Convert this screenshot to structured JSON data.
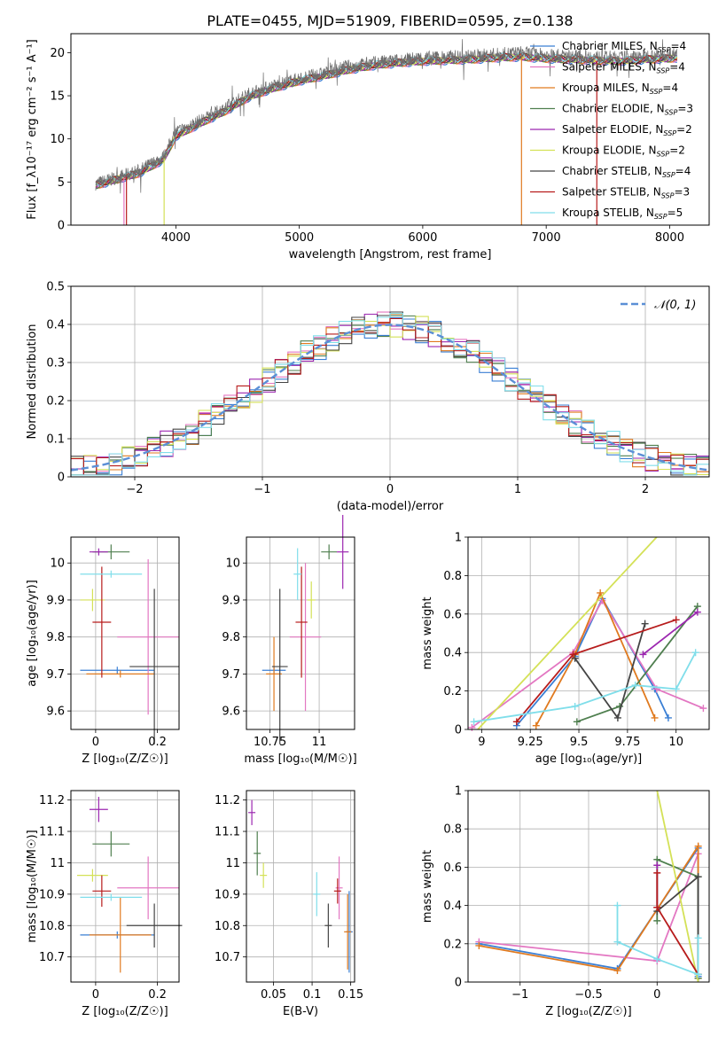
{
  "figure": {
    "title": "PLATE=0455, MJD=51909, FIBERID=0595, z=0.138",
    "models": [
      {
        "name": "Chabrier MILES",
        "nssp": "4",
        "color": "#3a7fd4"
      },
      {
        "name": "Salpeter MILES",
        "nssp": "4",
        "color": "#e377c2"
      },
      {
        "name": "Kroupa MILES",
        "nssp": "4",
        "color": "#e07a1f"
      },
      {
        "name": "Chabrier ELODIE",
        "nssp": "3",
        "color": "#4f7f4f"
      },
      {
        "name": "Salpeter ELODIE",
        "nssp": "2",
        "color": "#9c27b0"
      },
      {
        "name": "Kroupa ELODIE",
        "nssp": "2",
        "color": "#d4e157"
      },
      {
        "name": "Chabrier STELIB",
        "nssp": "4",
        "color": "#444444"
      },
      {
        "name": "Salpeter STELIB",
        "nssp": "3",
        "color": "#b71c1c"
      },
      {
        "name": "Kroupa STELIB",
        "nssp": "5",
        "color": "#80deea"
      }
    ]
  },
  "chart_data": [
    {
      "id": "spectrum",
      "type": "line",
      "xlabel": "wavelength [Angstrom, rest frame]",
      "ylabel": "Flux [f_λ10⁻¹⁷ erg cm⁻² s⁻¹ A⁻¹]",
      "xlim": [
        3150,
        8320
      ],
      "ylim": [
        0,
        22.2
      ],
      "xticks": [
        4000,
        5000,
        6000,
        7000,
        8000
      ],
      "yticks": [
        0,
        5,
        10,
        15,
        20
      ],
      "legend": "top-right",
      "x": [
        3350,
        3500,
        3700,
        3900,
        4000,
        4200,
        4400,
        4600,
        4800,
        5000,
        5200,
        5400,
        5600,
        5800,
        6000,
        6200,
        6400,
        6600,
        6800,
        7000,
        7200,
        7400,
        7600,
        7800,
        8000,
        8060
      ],
      "y": [
        4.8,
        5.4,
        6.3,
        7.9,
        10.8,
        12.1,
        13.6,
        15.3,
        16.2,
        17.0,
        17.6,
        18.4,
        18.8,
        19.1,
        19.4,
        19.5,
        19.6,
        19.8,
        20.0,
        19.7,
        19.6,
        19.5,
        19.4,
        19.6,
        19.8,
        20.0
      ],
      "y_fit": [
        4.6,
        5.2,
        6.0,
        7.6,
        10.3,
        11.8,
        13.2,
        14.9,
        15.9,
        16.7,
        17.3,
        18.0,
        18.5,
        18.8,
        19.0,
        19.1,
        19.2,
        19.4,
        19.5,
        19.3,
        19.2,
        19.1,
        19.0,
        19.2,
        19.3,
        19.4
      ]
    },
    {
      "id": "residuals",
      "type": "histogram",
      "xlabel": "(data-model)/error",
      "ylabel": "Normed distribution",
      "xlim": [
        -2.5,
        2.5
      ],
      "ylim": [
        0,
        0.5
      ],
      "xticks": [
        -2,
        -1,
        0,
        1,
        2
      ],
      "yticks": [
        0.0,
        0.1,
        0.2,
        0.3,
        0.4,
        0.5
      ],
      "grid": true,
      "legend": "top-right",
      "reference_curve": "𝒩(0, 1)",
      "bin_width": 0.1
    },
    {
      "id": "age_vs_Z",
      "type": "scatter",
      "xlabel": "Z [log₁₀(Z/Z☉)]",
      "ylabel": "age  [log₁₀(age/yr)]",
      "xlim": [
        -0.08,
        0.27
      ],
      "ylim": [
        9.55,
        10.07
      ],
      "xticks": [
        0.0,
        0.2
      ],
      "yticks": [
        9.6,
        9.7,
        9.8,
        9.9,
        10.0
      ],
      "grid": true,
      "points": [
        {
          "model": 0,
          "x": 0.07,
          "y": 9.71,
          "xerr": 0.12,
          "yerr": 0.0
        },
        {
          "model": 1,
          "x": 0.17,
          "y": 9.8,
          "xerr": 0.1,
          "yerr": 0.21
        },
        {
          "model": 2,
          "x": 0.08,
          "y": 9.7,
          "xerr": 0.11,
          "yerr": 0.0
        },
        {
          "model": 3,
          "x": 0.05,
          "y": 10.03,
          "xerr": 0.06,
          "yerr": 0.02
        },
        {
          "model": 4,
          "x": 0.01,
          "y": 10.03,
          "xerr": 0.03,
          "yerr": 0.0
        },
        {
          "model": 5,
          "x": -0.01,
          "y": 9.9,
          "xerr": 0.04,
          "yerr": 0.03
        },
        {
          "model": 6,
          "x": 0.19,
          "y": 9.72,
          "xerr": 0.08,
          "yerr": 0.21
        },
        {
          "model": 7,
          "x": 0.02,
          "y": 9.84,
          "xerr": 0.03,
          "yerr": 0.15
        },
        {
          "model": 8,
          "x": 0.05,
          "y": 9.97,
          "xerr": 0.1,
          "yerr": 0.0
        }
      ]
    },
    {
      "id": "age_vs_mass",
      "type": "scatter",
      "xlabel": "mass [log₁₀(M/M☉)]",
      "ylabel": "",
      "xlim": [
        10.63,
        11.18
      ],
      "ylim": [
        9.55,
        10.07
      ],
      "xticks": [
        10.75,
        11.0
      ],
      "yticks": [
        9.6,
        9.7,
        9.8,
        9.9,
        10.0
      ],
      "grid": true,
      "points": [
        {
          "model": 0,
          "x": 10.77,
          "y": 9.71,
          "xerr": 0.06,
          "yerr": 0.0
        },
        {
          "model": 1,
          "x": 10.93,
          "y": 9.8,
          "xerr": 0.08,
          "yerr": 0.2
        },
        {
          "model": 2,
          "x": 10.77,
          "y": 9.7,
          "xerr": 0.04,
          "yerr": 0.1
        },
        {
          "model": 3,
          "x": 11.05,
          "y": 10.03,
          "xerr": 0.04,
          "yerr": 0.02
        },
        {
          "model": 4,
          "x": 11.12,
          "y": 10.03,
          "xerr": 0.03,
          "yerr": 0.1
        },
        {
          "model": 5,
          "x": 10.96,
          "y": 9.9,
          "xerr": 0.02,
          "yerr": 0.05
        },
        {
          "model": 6,
          "x": 10.8,
          "y": 9.72,
          "xerr": 0.04,
          "yerr": 0.21
        },
        {
          "model": 7,
          "x": 10.91,
          "y": 9.84,
          "xerr": 0.03,
          "yerr": 0.15
        },
        {
          "model": 8,
          "x": 10.89,
          "y": 9.97,
          "xerr": 0.02,
          "yerr": 0.07
        }
      ]
    },
    {
      "id": "weight_vs_age",
      "type": "line",
      "xlabel": "age  [log₁₀(age/yr)]",
      "ylabel": "mass weight",
      "xlim": [
        8.93,
        10.17
      ],
      "ylim": [
        0,
        1.0
      ],
      "xticks": [
        9.0,
        9.25,
        9.5,
        9.75,
        10.0
      ],
      "yticks": [
        0.0,
        0.2,
        0.4,
        0.6,
        0.8,
        1.0
      ],
      "grid": true,
      "series": [
        {
          "model": 0,
          "x": [
            9.18,
            9.48,
            9.62,
            9.89,
            9.96
          ],
          "y": [
            0.02,
            0.38,
            0.68,
            0.21,
            0.06
          ]
        },
        {
          "model": 1,
          "x": [
            8.95,
            9.47,
            9.62,
            9.9,
            10.14
          ],
          "y": [
            0.01,
            0.4,
            0.67,
            0.21,
            0.11
          ]
        },
        {
          "model": 2,
          "x": [
            9.28,
            9.48,
            9.61,
            9.89
          ],
          "y": [
            0.02,
            0.39,
            0.71,
            0.06
          ]
        },
        {
          "model": 3,
          "x": [
            9.49,
            9.71,
            10.11
          ],
          "y": [
            0.04,
            0.12,
            0.64
          ]
        },
        {
          "model": 4,
          "x": [
            9.83,
            10.11
          ],
          "y": [
            0.39,
            0.61
          ]
        },
        {
          "model": 5,
          "x": [
            8.98,
            9.9
          ],
          "y": [
            0.0,
            1.0
          ]
        },
        {
          "model": 6,
          "x": [
            9.48,
            9.7,
            9.84
          ],
          "y": [
            0.37,
            0.06,
            0.55
          ]
        },
        {
          "model": 7,
          "x": [
            9.18,
            9.47,
            10.0
          ],
          "y": [
            0.04,
            0.39,
            0.57
          ]
        },
        {
          "model": 8,
          "x": [
            8.96,
            9.48,
            9.79,
            10.0,
            10.1
          ],
          "y": [
            0.04,
            0.12,
            0.23,
            0.21,
            0.4
          ]
        }
      ]
    },
    {
      "id": "mass_vs_Z",
      "type": "scatter",
      "xlabel": "Z [log₁₀(Z/Z☉)]",
      "ylabel": "mass [log₁₀(M/M☉)]",
      "xlim": [
        -0.08,
        0.27
      ],
      "ylim": [
        10.62,
        11.23
      ],
      "xticks": [
        0.0,
        0.2
      ],
      "yticks": [
        10.7,
        10.8,
        10.9,
        11.0,
        11.1,
        11.2
      ],
      "grid": true,
      "points": [
        {
          "model": 0,
          "x": 0.07,
          "y": 10.77,
          "xerr": 0.12,
          "yerr": 0.0
        },
        {
          "model": 1,
          "x": 0.17,
          "y": 10.92,
          "xerr": 0.1,
          "yerr": 0.1
        },
        {
          "model": 2,
          "x": 0.08,
          "y": 10.77,
          "xerr": 0.1,
          "yerr": 0.12
        },
        {
          "model": 3,
          "x": 0.05,
          "y": 11.06,
          "xerr": 0.06,
          "yerr": 0.04
        },
        {
          "model": 4,
          "x": 0.01,
          "y": 11.17,
          "xerr": 0.03,
          "yerr": 0.04
        },
        {
          "model": 5,
          "x": -0.01,
          "y": 10.96,
          "xerr": 0.05,
          "yerr": 0.02
        },
        {
          "model": 6,
          "x": 0.19,
          "y": 10.8,
          "xerr": 0.09,
          "yerr": 0.07
        },
        {
          "model": 7,
          "x": 0.02,
          "y": 10.91,
          "xerr": 0.03,
          "yerr": 0.05
        },
        {
          "model": 8,
          "x": 0.05,
          "y": 10.89,
          "xerr": 0.1,
          "yerr": 0.0
        }
      ]
    },
    {
      "id": "mass_vs_ebv",
      "type": "scatter",
      "xlabel": "E(B-V)",
      "ylabel": "",
      "xlim": [
        0.015,
        0.155
      ],
      "ylim": [
        10.62,
        11.23
      ],
      "xticks": [
        0.05,
        0.1,
        0.15
      ],
      "yticks": [
        10.7,
        10.8,
        10.9,
        11.0,
        11.1,
        11.2
      ],
      "grid": true,
      "points": [
        {
          "model": 0,
          "x": 0.148,
          "y": 10.78,
          "xerr": 0.0,
          "yerr": 0.13
        },
        {
          "model": 1,
          "x": 0.135,
          "y": 10.92,
          "xerr": 0.0,
          "yerr": 0.1
        },
        {
          "model": 2,
          "x": 0.146,
          "y": 10.78,
          "xerr": 0.0,
          "yerr": 0.12
        },
        {
          "model": 3,
          "x": 0.029,
          "y": 11.03,
          "xerr": 0.0,
          "yerr": 0.07
        },
        {
          "model": 4,
          "x": 0.022,
          "y": 11.16,
          "xerr": 0.0,
          "yerr": 0.04
        },
        {
          "model": 5,
          "x": 0.037,
          "y": 10.96,
          "xerr": 0.0,
          "yerr": 0.04
        },
        {
          "model": 6,
          "x": 0.121,
          "y": 10.8,
          "xerr": 0.0,
          "yerr": 0.07
        },
        {
          "model": 7,
          "x": 0.133,
          "y": 10.91,
          "xerr": 0.0,
          "yerr": 0.04
        },
        {
          "model": 8,
          "x": 0.106,
          "y": 10.9,
          "xerr": 0.0,
          "yerr": 0.07
        }
      ]
    },
    {
      "id": "weight_vs_Z",
      "type": "line",
      "xlabel": "Z [log₁₀(Z/Z☉)]",
      "ylabel": "mass weight",
      "xlim": [
        -1.38,
        0.38
      ],
      "ylim": [
        0,
        1.0
      ],
      "xticks": [
        -1.0,
        -0.5,
        0.0
      ],
      "yticks": [
        0.0,
        0.2,
        0.4,
        0.6,
        0.8,
        1.0
      ],
      "grid": true,
      "series": [
        {
          "model": 0,
          "x": [
            -1.3,
            -0.29,
            0.3,
            0.3
          ],
          "y": [
            0.2,
            0.07,
            0.7,
            0.03
          ]
        },
        {
          "model": 1,
          "x": [
            -1.3,
            0.0,
            0.3
          ],
          "y": [
            0.21,
            0.11,
            0.67
          ]
        },
        {
          "model": 2,
          "x": [
            -1.3,
            -0.29,
            0.3,
            0.3
          ],
          "y": [
            0.19,
            0.06,
            0.71,
            0.02
          ]
        },
        {
          "model": 3,
          "x": [
            0.0,
            0.0,
            0.3,
            0.3
          ],
          "y": [
            0.32,
            0.64,
            0.55,
            0.02
          ]
        },
        {
          "model": 4,
          "x": [
            0.0,
            0.0
          ],
          "y": [
            0.39,
            0.61
          ]
        },
        {
          "model": 5,
          "x": [
            0.0,
            0.3
          ],
          "y": [
            1.0,
            0.0
          ]
        },
        {
          "model": 6,
          "x": [
            0.0,
            0.3,
            0.3
          ],
          "y": [
            0.37,
            0.55,
            0.04
          ]
        },
        {
          "model": 7,
          "x": [
            0.0,
            0.0,
            0.3
          ],
          "y": [
            0.57,
            0.39,
            0.04
          ]
        },
        {
          "model": 8,
          "x": [
            -0.29,
            -0.29,
            0.0,
            0.3,
            0.3
          ],
          "y": [
            0.4,
            0.21,
            0.12,
            0.04,
            0.23
          ]
        }
      ]
    }
  ]
}
